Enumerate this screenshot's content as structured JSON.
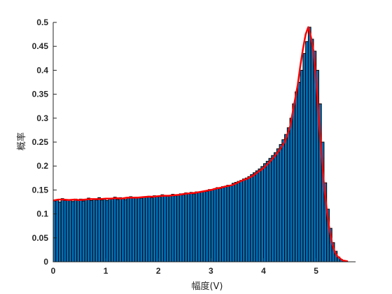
{
  "chart_data": {
    "type": "bar",
    "title": "",
    "xlabel": "幅度(V)",
    "ylabel": "概率",
    "xlim": [
      0,
      5.75
    ],
    "ylim": [
      0,
      0.5
    ],
    "x_ticks": [
      0,
      1,
      2,
      3,
      4,
      5
    ],
    "y_ticks": [
      0,
      0.05,
      0.1,
      0.15,
      0.2,
      0.25,
      0.3,
      0.35,
      0.4,
      0.45,
      0.5
    ],
    "grid": false,
    "legend": "none",
    "bar_width": 0.05,
    "colors": {
      "bars": "#0072BD",
      "bar_edge": "#000000",
      "fit_line": "#FF0000",
      "axis": "#262626"
    },
    "series": [
      {
        "kind": "histogram",
        "x": [
          0.025,
          0.075,
          0.125,
          0.175,
          0.225,
          0.275,
          0.325,
          0.375,
          0.425,
          0.475,
          0.525,
          0.575,
          0.625,
          0.675,
          0.725,
          0.775,
          0.825,
          0.875,
          0.925,
          0.975,
          1.025,
          1.075,
          1.125,
          1.175,
          1.225,
          1.275,
          1.325,
          1.375,
          1.425,
          1.475,
          1.525,
          1.575,
          1.625,
          1.675,
          1.725,
          1.775,
          1.825,
          1.875,
          1.925,
          1.975,
          2.025,
          2.075,
          2.125,
          2.175,
          2.225,
          2.275,
          2.325,
          2.375,
          2.425,
          2.475,
          2.525,
          2.575,
          2.625,
          2.675,
          2.725,
          2.775,
          2.825,
          2.875,
          2.925,
          2.975,
          3.025,
          3.075,
          3.125,
          3.175,
          3.225,
          3.275,
          3.325,
          3.375,
          3.425,
          3.475,
          3.525,
          3.575,
          3.625,
          3.675,
          3.725,
          3.775,
          3.825,
          3.875,
          3.925,
          3.975,
          4.025,
          4.075,
          4.125,
          4.175,
          4.225,
          4.275,
          4.325,
          4.375,
          4.425,
          4.475,
          4.525,
          4.575,
          4.625,
          4.675,
          4.725,
          4.775,
          4.825,
          4.875,
          4.925,
          4.975,
          5.025,
          5.075,
          5.125,
          5.175,
          5.225,
          5.275,
          5.325,
          5.375,
          5.425,
          5.475,
          5.525,
          5.575
        ],
        "values": [
          0.127,
          0.13,
          0.125,
          0.132,
          0.128,
          0.13,
          0.129,
          0.126,
          0.131,
          0.128,
          0.131,
          0.127,
          0.13,
          0.133,
          0.128,
          0.131,
          0.129,
          0.134,
          0.129,
          0.132,
          0.128,
          0.133,
          0.131,
          0.135,
          0.13,
          0.134,
          0.133,
          0.13,
          0.134,
          0.136,
          0.133,
          0.135,
          0.134,
          0.133,
          0.136,
          0.135,
          0.137,
          0.134,
          0.138,
          0.137,
          0.136,
          0.14,
          0.138,
          0.137,
          0.139,
          0.141,
          0.138,
          0.139,
          0.142,
          0.14,
          0.144,
          0.143,
          0.145,
          0.142,
          0.146,
          0.145,
          0.147,
          0.148,
          0.147,
          0.151,
          0.15,
          0.153,
          0.155,
          0.153,
          0.157,
          0.158,
          0.16,
          0.159,
          0.164,
          0.166,
          0.168,
          0.17,
          0.173,
          0.175,
          0.178,
          0.182,
          0.186,
          0.19,
          0.194,
          0.199,
          0.205,
          0.21,
          0.216,
          0.222,
          0.228,
          0.236,
          0.245,
          0.255,
          0.266,
          0.28,
          0.3,
          0.33,
          0.355,
          0.375,
          0.4,
          0.435,
          0.46,
          0.49,
          0.465,
          0.44,
          0.4,
          0.33,
          0.25,
          0.165,
          0.11,
          0.07,
          0.04,
          0.022,
          0.01,
          0.005,
          0.002,
          0.001
        ]
      },
      {
        "kind": "line",
        "x": [
          0,
          0.1,
          0.2,
          0.3,
          0.4,
          0.5,
          0.6,
          0.7,
          0.8,
          0.9,
          1.0,
          1.1,
          1.2,
          1.3,
          1.4,
          1.5,
          1.6,
          1.7,
          1.8,
          1.9,
          2.0,
          2.1,
          2.2,
          2.3,
          2.4,
          2.5,
          2.6,
          2.7,
          2.8,
          2.9,
          3.0,
          3.1,
          3.2,
          3.3,
          3.4,
          3.5,
          3.6,
          3.7,
          3.8,
          3.9,
          4.0,
          4.1,
          4.2,
          4.3,
          4.4,
          4.5,
          4.55,
          4.6,
          4.65,
          4.7,
          4.75,
          4.8,
          4.85,
          4.9,
          4.95,
          5.0,
          5.05,
          5.1,
          5.15,
          5.2,
          5.25,
          5.3,
          5.35,
          5.4,
          5.5,
          5.6
        ],
        "values": [
          0.128,
          0.13,
          0.13,
          0.129,
          0.13,
          0.129,
          0.13,
          0.131,
          0.131,
          0.131,
          0.132,
          0.132,
          0.133,
          0.132,
          0.134,
          0.134,
          0.134,
          0.135,
          0.136,
          0.136,
          0.137,
          0.138,
          0.138,
          0.139,
          0.14,
          0.142,
          0.143,
          0.144,
          0.146,
          0.148,
          0.15,
          0.153,
          0.155,
          0.158,
          0.16,
          0.165,
          0.17,
          0.174,
          0.18,
          0.188,
          0.196,
          0.207,
          0.219,
          0.233,
          0.25,
          0.28,
          0.31,
          0.34,
          0.37,
          0.41,
          0.445,
          0.475,
          0.49,
          0.47,
          0.44,
          0.38,
          0.3,
          0.23,
          0.16,
          0.11,
          0.07,
          0.04,
          0.022,
          0.012,
          0.003,
          0.001
        ]
      }
    ]
  }
}
